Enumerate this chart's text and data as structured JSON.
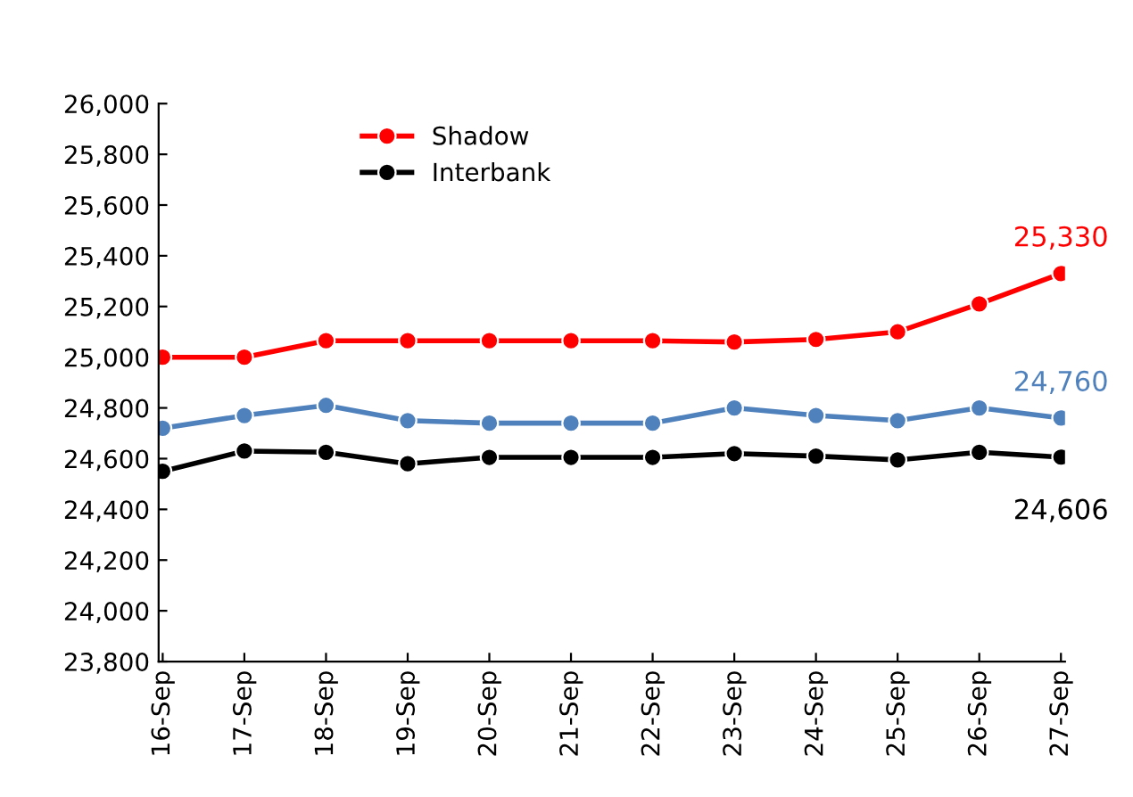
{
  "chart_data": {
    "type": "line",
    "categories": [
      "16-Sep",
      "17-Sep",
      "18-Sep",
      "19-Sep",
      "20-Sep",
      "21-Sep",
      "22-Sep",
      "23-Sep",
      "24-Sep",
      "25-Sep",
      "26-Sep",
      "27-Sep"
    ],
    "series": [
      {
        "color": "#4f81bd",
        "values": [
          24720,
          24770,
          24810,
          24750,
          24740,
          24740,
          24740,
          24800,
          24770,
          24750,
          24800,
          24760
        ],
        "value_labels": [
          null,
          null,
          null,
          null,
          null,
          null,
          null,
          null,
          null,
          null,
          null,
          "24,760"
        ]
      },
      {
        "name": "Shadow",
        "color": "#ff0000",
        "values": [
          25000,
          25000,
          25065,
          25065,
          25065,
          25065,
          25065,
          25060,
          25070,
          25100,
          25210,
          25330
        ],
        "value_labels": [
          null,
          null,
          null,
          null,
          null,
          null,
          null,
          null,
          null,
          null,
          null,
          "25,330"
        ]
      },
      {
        "name": "Interbank",
        "color": "#000000",
        "values": [
          24550,
          24630,
          24625,
          24580,
          24605,
          24605,
          24605,
          24620,
          24610,
          24595,
          24625,
          24606
        ],
        "value_labels": [
          null,
          null,
          null,
          null,
          null,
          null,
          null,
          null,
          null,
          null,
          null,
          "24,606"
        ]
      }
    ],
    "ylim": [
      23800,
      26000
    ],
    "yticks": [
      {
        "value": 23800,
        "label": "23,800"
      },
      {
        "value": 24000,
        "label": "24,000"
      },
      {
        "value": 24200,
        "label": "24,200"
      },
      {
        "value": 24400,
        "label": "24,400"
      },
      {
        "value": 24600,
        "label": "24,600"
      },
      {
        "value": 24800,
        "label": "24,800"
      },
      {
        "value": 25000,
        "label": "25,000"
      },
      {
        "value": 25200,
        "label": "25,200"
      },
      {
        "value": 25400,
        "label": "25,400"
      },
      {
        "value": 25600,
        "label": "25,600"
      },
      {
        "value": 25800,
        "label": "25,800"
      },
      {
        "value": 26000,
        "label": "26,000"
      }
    ],
    "grid": false,
    "legend": "top left",
    "marker": "circle",
    "line_style": "solid"
  }
}
